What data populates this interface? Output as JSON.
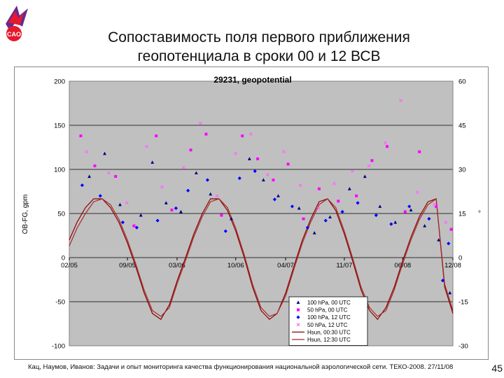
{
  "slide": {
    "title_line1": "Сопоставимость поля первого приближения",
    "title_line2": "геопотенциала в сроки 00 и 12 ВСВ",
    "logo_text": "CAO",
    "footer": "Кац, Наумов, Иванов: Задачи и опыт мониторинга качества функционирования национальной аэрологической сети. ТЕКО-2008. 27/11/08",
    "slide_number": "45"
  },
  "colors": {
    "plot_bg": "#c0c0c0",
    "series_100_00": "#000080",
    "series_50_00": "#ff00ff",
    "series_100_12": "#0000ff",
    "series_50_12": "#ff66ff",
    "hsun_00": "#8b0000",
    "hsun_12": "#a52a2a",
    "logo_red": "#e6192e",
    "logo_purple": "#6a2a8c"
  },
  "chart_data": {
    "type": "scatter",
    "title": "29231, geopotential",
    "ylabel": "OB-FG, gpm",
    "y2label": "°",
    "ylim": [
      -100,
      200
    ],
    "y2lim": [
      -30,
      60
    ],
    "yticks": [
      "-100",
      "-50",
      "0",
      "50",
      "100",
      "150",
      "200"
    ],
    "y2ticks": [
      "-30",
      "-15",
      "0",
      "15",
      "30",
      "45",
      "60"
    ],
    "xlim": [
      "2005-02-01",
      "2008-12-01"
    ],
    "xticks": [
      {
        "label": "02/05",
        "date": "2005-02-01"
      },
      {
        "label": "09/05",
        "date": "2005-09-01"
      },
      {
        "label": "03/06",
        "date": "2006-03-01"
      },
      {
        "label": "10/06",
        "date": "2006-10-01"
      },
      {
        "label": "04/07",
        "date": "2007-04-01"
      },
      {
        "label": "11/07",
        "date": "2007-11-01"
      },
      {
        "label": "06/08",
        "date": "2008-06-01"
      },
      {
        "label": "12/08",
        "date": "2008-12-01"
      }
    ],
    "legend_position": "bottom-right",
    "grid": "horizontal",
    "series": [
      {
        "name": "100 hPa, 00 UTC",
        "kind": "scatter",
        "marker": "triangle",
        "axis": "left",
        "points": [
          [
            "2005-04-15",
            92
          ],
          [
            "2005-06-10",
            118
          ],
          [
            "2005-08-05",
            60
          ],
          [
            "2005-10-20",
            48
          ],
          [
            "2005-12-01",
            108
          ],
          [
            "2006-01-20",
            62
          ],
          [
            "2006-03-15",
            52
          ],
          [
            "2006-05-10",
            96
          ],
          [
            "2006-07-01",
            72
          ],
          [
            "2006-09-15",
            44
          ],
          [
            "2006-11-20",
            112
          ],
          [
            "2007-01-10",
            88
          ],
          [
            "2007-03-05",
            70
          ],
          [
            "2007-05-20",
            56
          ],
          [
            "2007-07-15",
            28
          ],
          [
            "2007-09-10",
            46
          ],
          [
            "2007-11-20",
            78
          ],
          [
            "2008-01-15",
            92
          ],
          [
            "2008-03-10",
            58
          ],
          [
            "2008-05-05",
            40
          ],
          [
            "2008-07-01",
            54
          ],
          [
            "2008-08-20",
            36
          ],
          [
            "2008-10-10",
            20
          ],
          [
            "2008-11-20",
            -40
          ]
        ]
      },
      {
        "name": "50 hPa, 00 UTC",
        "kind": "scatter",
        "marker": "square",
        "axis": "left",
        "points": [
          [
            "2005-03-15",
            138
          ],
          [
            "2005-05-05",
            104
          ],
          [
            "2005-07-20",
            92
          ],
          [
            "2005-09-25",
            36
          ],
          [
            "2005-12-15",
            138
          ],
          [
            "2006-02-10",
            54
          ],
          [
            "2006-04-20",
            122
          ],
          [
            "2006-06-15",
            140
          ],
          [
            "2006-08-10",
            48
          ],
          [
            "2006-10-25",
            138
          ],
          [
            "2006-12-20",
            112
          ],
          [
            "2007-02-15",
            88
          ],
          [
            "2007-04-10",
            106
          ],
          [
            "2007-06-05",
            44
          ],
          [
            "2007-08-01",
            78
          ],
          [
            "2007-10-10",
            64
          ],
          [
            "2007-12-15",
            70
          ],
          [
            "2008-02-10",
            110
          ],
          [
            "2008-04-05",
            126
          ],
          [
            "2008-06-10",
            52
          ],
          [
            "2008-08-01",
            120
          ],
          [
            "2008-10-01",
            58
          ],
          [
            "2008-11-25",
            32
          ]
        ]
      },
      {
        "name": "100 hPa, 12 UTC",
        "kind": "scatter",
        "marker": "diamond",
        "axis": "left",
        "points": [
          [
            "2005-03-20",
            82
          ],
          [
            "2005-05-25",
            70
          ],
          [
            "2005-08-15",
            40
          ],
          [
            "2005-10-05",
            34
          ],
          [
            "2005-12-20",
            42
          ],
          [
            "2006-02-25",
            56
          ],
          [
            "2006-04-10",
            76
          ],
          [
            "2006-06-20",
            88
          ],
          [
            "2006-08-25",
            30
          ],
          [
            "2006-10-15",
            90
          ],
          [
            "2006-12-10",
            98
          ],
          [
            "2007-02-20",
            66
          ],
          [
            "2007-04-25",
            58
          ],
          [
            "2007-06-20",
            34
          ],
          [
            "2007-08-25",
            42
          ],
          [
            "2007-10-25",
            52
          ],
          [
            "2007-12-20",
            62
          ],
          [
            "2008-02-25",
            48
          ],
          [
            "2008-04-20",
            38
          ],
          [
            "2008-06-25",
            58
          ],
          [
            "2008-09-05",
            44
          ],
          [
            "2008-10-25",
            -26
          ],
          [
            "2008-11-15",
            16
          ]
        ]
      },
      {
        "name": "50 hPa, 12 UTC",
        "kind": "scatter",
        "marker": "x",
        "axis": "left",
        "points": [
          [
            "2005-04-05",
            120
          ],
          [
            "2005-06-25",
            96
          ],
          [
            "2005-08-30",
            62
          ],
          [
            "2005-11-10",
            126
          ],
          [
            "2006-01-05",
            80
          ],
          [
            "2006-03-25",
            102
          ],
          [
            "2006-05-25",
            152
          ],
          [
            "2006-07-25",
            70
          ],
          [
            "2006-09-30",
            118
          ],
          [
            "2006-11-25",
            140
          ],
          [
            "2007-01-25",
            94
          ],
          [
            "2007-03-25",
            120
          ],
          [
            "2007-05-25",
            82
          ],
          [
            "2007-07-30",
            56
          ],
          [
            "2007-09-25",
            84
          ],
          [
            "2007-11-30",
            98
          ],
          [
            "2008-01-30",
            104
          ],
          [
            "2008-03-30",
            130
          ],
          [
            "2008-05-25",
            178
          ],
          [
            "2008-07-25",
            74
          ],
          [
            "2008-09-25",
            60
          ],
          [
            "2008-11-05",
            40
          ]
        ]
      },
      {
        "name": "Hsun, 00:30 UTC",
        "kind": "line",
        "axis": "right",
        "x": [
          "2005-02-01",
          "2005-03-01",
          "2005-04-01",
          "2005-05-01",
          "2005-06-01",
          "2005-07-01",
          "2005-08-01",
          "2005-09-01",
          "2005-10-01",
          "2005-11-01",
          "2005-12-01",
          "2006-01-01",
          "2006-02-01",
          "2006-03-01",
          "2006-04-01",
          "2006-05-01",
          "2006-06-01",
          "2006-07-01",
          "2006-08-01",
          "2006-09-01",
          "2006-10-01",
          "2006-11-01",
          "2006-12-01",
          "2007-01-01",
          "2007-02-01",
          "2007-03-01",
          "2007-04-01",
          "2007-05-01",
          "2007-06-01",
          "2007-07-01",
          "2007-08-01",
          "2007-09-01",
          "2007-10-01",
          "2007-11-01",
          "2007-12-01",
          "2008-01-01",
          "2008-02-01",
          "2008-03-01",
          "2008-04-01",
          "2008-05-01",
          "2008-06-01",
          "2008-07-01",
          "2008-08-01",
          "2008-09-01",
          "2008-10-01",
          "2008-11-01",
          "2008-12-01"
        ],
        "values": [
          6,
          12,
          17,
          20,
          20,
          17,
          12,
          5,
          -3,
          -12,
          -19,
          -21,
          -16,
          -8,
          0,
          8,
          15,
          20,
          20,
          16,
          9,
          0,
          -10,
          -18,
          -21,
          -19,
          -12,
          -3,
          6,
          13,
          19,
          20,
          16,
          8,
          -1,
          -11,
          -18,
          -21,
          -17,
          -10,
          -1,
          7,
          14,
          19,
          20,
          -10,
          -19
        ]
      },
      {
        "name": "Hsun, 12:30 UTC",
        "kind": "line",
        "axis": "right",
        "x": [
          "2005-02-01",
          "2005-03-01",
          "2005-04-01",
          "2005-05-01",
          "2005-06-01",
          "2005-07-01",
          "2005-08-01",
          "2005-09-01",
          "2005-10-01",
          "2005-11-01",
          "2005-12-01",
          "2006-01-01",
          "2006-02-01",
          "2006-03-01",
          "2006-04-01",
          "2006-05-01",
          "2006-06-01",
          "2006-07-01",
          "2006-08-01",
          "2006-09-01",
          "2006-10-01",
          "2006-11-01",
          "2006-12-01",
          "2007-01-01",
          "2007-02-01",
          "2007-03-01",
          "2007-04-01",
          "2007-05-01",
          "2007-06-01",
          "2007-07-01",
          "2007-08-01",
          "2007-09-01",
          "2007-10-01",
          "2007-11-01",
          "2007-12-01",
          "2008-01-01",
          "2008-02-01",
          "2008-03-01",
          "2008-04-01",
          "2008-05-01",
          "2008-06-01",
          "2008-07-01",
          "2008-08-01",
          "2008-09-01",
          "2008-10-01",
          "2008-11-01",
          "2008-12-01"
        ],
        "values": [
          4,
          10,
          15,
          19,
          20,
          18,
          13,
          6,
          -2,
          -11,
          -18,
          -20,
          -17,
          -9,
          -1,
          7,
          14,
          19,
          20,
          17,
          10,
          1,
          -9,
          -17,
          -20,
          -19,
          -13,
          -4,
          5,
          12,
          18,
          20,
          17,
          9,
          0,
          -10,
          -17,
          -20,
          -18,
          -11,
          -2,
          6,
          13,
          18,
          20,
          -9,
          -18
        ]
      }
    ]
  }
}
